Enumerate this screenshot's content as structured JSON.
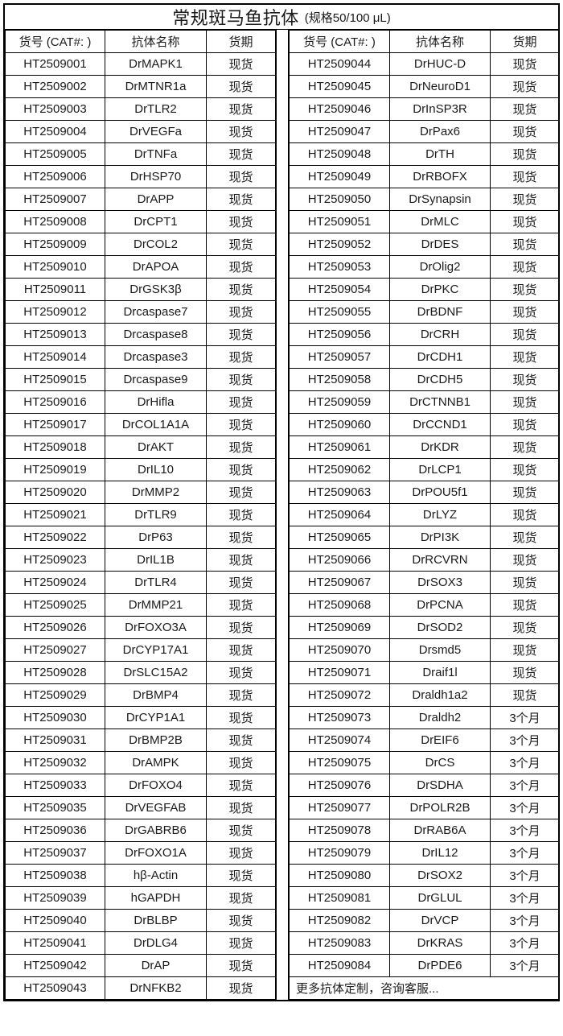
{
  "title": {
    "main": "常规斑马鱼抗体",
    "spec": "(规格50/100 μL)"
  },
  "columns": [
    "货号 (CAT#: )",
    "抗体名称",
    "货期"
  ],
  "left_table": {
    "rows": [
      [
        "HT2509001",
        "DrMAPK1",
        "现货"
      ],
      [
        "HT2509002",
        "DrMTNR1a",
        "现货"
      ],
      [
        "HT2509003",
        "DrTLR2",
        "现货"
      ],
      [
        "HT2509004",
        "DrVEGFa",
        "现货"
      ],
      [
        "HT2509005",
        "DrTNFa",
        "现货"
      ],
      [
        "HT2509006",
        "DrHSP70",
        "现货"
      ],
      [
        "HT2509007",
        "DrAPP",
        "现货"
      ],
      [
        "HT2509008",
        "DrCPT1",
        "现货"
      ],
      [
        "HT2509009",
        "DrCOL2",
        "现货"
      ],
      [
        "HT2509010",
        "DrAPOA",
        "现货"
      ],
      [
        "HT2509011",
        "DrGSK3β",
        "现货"
      ],
      [
        "HT2509012",
        "Drcaspase7",
        "现货"
      ],
      [
        "HT2509013",
        "Drcaspase8",
        "现货"
      ],
      [
        "HT2509014",
        "Drcaspase3",
        "现货"
      ],
      [
        "HT2509015",
        "Drcaspase9",
        "现货"
      ],
      [
        "HT2509016",
        "DrHifla",
        "现货"
      ],
      [
        "HT2509017",
        "DrCOL1A1A",
        "现货"
      ],
      [
        "HT2509018",
        "DrAKT",
        "现货"
      ],
      [
        "HT2509019",
        "DrIL10",
        "现货"
      ],
      [
        "HT2509020",
        "DrMMP2",
        "现货"
      ],
      [
        "HT2509021",
        "DrTLR9",
        "现货"
      ],
      [
        "HT2509022",
        "DrP63",
        "现货"
      ],
      [
        "HT2509023",
        "DrIL1B",
        "现货"
      ],
      [
        "HT2509024",
        "DrTLR4",
        "现货"
      ],
      [
        "HT2509025",
        "DrMMP21",
        "现货"
      ],
      [
        "HT2509026",
        "DrFOXO3A",
        "现货"
      ],
      [
        "HT2509027",
        "DrCYP17A1",
        "现货"
      ],
      [
        "HT2509028",
        "DrSLC15A2",
        "现货"
      ],
      [
        "HT2509029",
        "DrBMP4",
        "现货"
      ],
      [
        "HT2509030",
        "DrCYP1A1",
        "现货"
      ],
      [
        "HT2509031",
        "DrBMP2B",
        "现货"
      ],
      [
        "HT2509032",
        "DrAMPK",
        "现货"
      ],
      [
        "HT2509033",
        "DrFOXO4",
        "现货"
      ],
      [
        "HT2509035",
        "DrVEGFAB",
        "现货"
      ],
      [
        "HT2509036",
        "DrGABRB6",
        "现货"
      ],
      [
        "HT2509037",
        "DrFOXO1A",
        "现货"
      ],
      [
        "HT2509038",
        "hβ-Actin",
        "现货"
      ],
      [
        "HT2509039",
        "hGAPDH",
        "现货"
      ],
      [
        "HT2509040",
        "DrBLBP",
        "现货"
      ],
      [
        "HT2509041",
        "DrDLG4",
        "现货"
      ],
      [
        "HT2509042",
        "DrAP",
        "现货"
      ],
      [
        "HT2509043",
        "DrNFKB2",
        "现货"
      ]
    ]
  },
  "right_table": {
    "rows": [
      [
        "HT2509044",
        "DrHUC-D",
        "现货"
      ],
      [
        "HT2509045",
        "DrNeuroD1",
        "现货"
      ],
      [
        "HT2509046",
        "DrInSP3R",
        "现货"
      ],
      [
        "HT2509047",
        "DrPax6",
        "现货"
      ],
      [
        "HT2509048",
        "DrTH",
        "现货"
      ],
      [
        "HT2509049",
        "DrRBOFX",
        "现货"
      ],
      [
        "HT2509050",
        "DrSynapsin",
        "现货"
      ],
      [
        "HT2509051",
        "DrMLC",
        "现货"
      ],
      [
        "HT2509052",
        "DrDES",
        "现货"
      ],
      [
        "HT2509053",
        "DrOlig2",
        "现货"
      ],
      [
        "HT2509054",
        "DrPKC",
        "现货"
      ],
      [
        "HT2509055",
        "DrBDNF",
        "现货"
      ],
      [
        "HT2509056",
        "DrCRH",
        "现货"
      ],
      [
        "HT2509057",
        "DrCDH1",
        "现货"
      ],
      [
        "HT2509058",
        "DrCDH5",
        "现货"
      ],
      [
        "HT2509059",
        "DrCTNNB1",
        "现货"
      ],
      [
        "HT2509060",
        "DrCCND1",
        "现货"
      ],
      [
        "HT2509061",
        "DrKDR",
        "现货"
      ],
      [
        "HT2509062",
        "DrLCP1",
        "现货"
      ],
      [
        "HT2509063",
        "DrPOU5f1",
        "现货"
      ],
      [
        "HT2509064",
        "DrLYZ",
        "现货"
      ],
      [
        "HT2509065",
        "DrPI3K",
        "现货"
      ],
      [
        "HT2509066",
        "DrRCVRN",
        "现货"
      ],
      [
        "HT2509067",
        "DrSOX3",
        "现货"
      ],
      [
        "HT2509068",
        "DrPCNA",
        "现货"
      ],
      [
        "HT2509069",
        "DrSOD2",
        "现货"
      ],
      [
        "HT2509070",
        "Drsmd5",
        "现货"
      ],
      [
        "HT2509071",
        "Draif1l",
        "现货"
      ],
      [
        "HT2509072",
        "Draldh1a2",
        "现货"
      ],
      [
        "HT2509073",
        "Draldh2",
        "3个月"
      ],
      [
        "HT2509074",
        "DrEIF6",
        "3个月"
      ],
      [
        "HT2509075",
        "DrCS",
        "3个月"
      ],
      [
        "HT2509076",
        "DrSDHA",
        "3个月"
      ],
      [
        "HT2509077",
        "DrPOLR2B",
        "3个月"
      ],
      [
        "HT2509078",
        "DrRAB6A",
        "3个月"
      ],
      [
        "HT2509079",
        "DrIL12",
        "3个月"
      ],
      [
        "HT2509080",
        "DrSOX2",
        "3个月"
      ],
      [
        "HT2509081",
        "DrGLUL",
        "3个月"
      ],
      [
        "HT2509082",
        "DrVCP",
        "3个月"
      ],
      [
        "HT2509083",
        "DrKRAS",
        "3个月"
      ],
      [
        "HT2509084",
        "DrPDE6",
        "3个月"
      ]
    ],
    "footer_note": "更多抗体定制，咨询客服..."
  }
}
